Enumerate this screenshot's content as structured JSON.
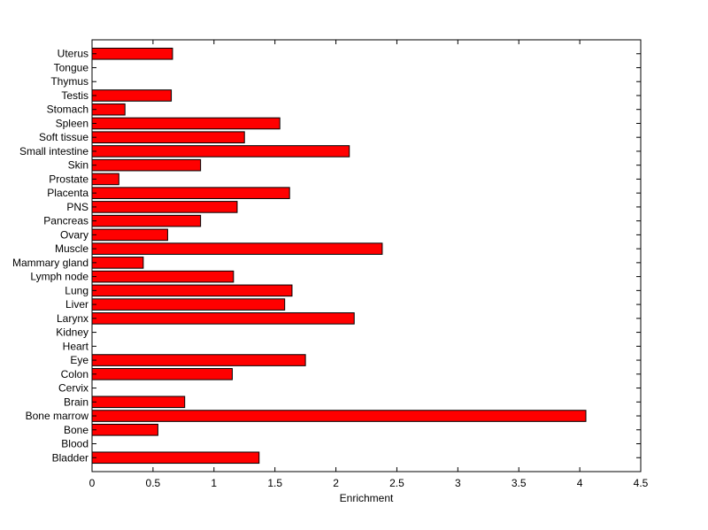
{
  "chart_data": {
    "type": "bar",
    "orientation": "horizontal",
    "categories": [
      "Bladder",
      "Blood",
      "Bone",
      "Bone marrow",
      "Brain",
      "Cervix",
      "Colon",
      "Eye",
      "Heart",
      "Kidney",
      "Larynx",
      "Liver",
      "Lung",
      "Lymph node",
      "Mammary gland",
      "Muscle",
      "Ovary",
      "Pancreas",
      "PNS",
      "Placenta",
      "Prostate",
      "Skin",
      "Small intestine",
      "Soft tissue",
      "Spleen",
      "Stomach",
      "Testis",
      "Thymus",
      "Tongue",
      "Uterus"
    ],
    "values": [
      1.37,
      0,
      0.54,
      4.05,
      0.76,
      0,
      1.15,
      1.75,
      0,
      0,
      2.15,
      1.58,
      1.64,
      1.16,
      0.42,
      2.38,
      0.62,
      0.89,
      1.19,
      1.62,
      0.22,
      0.89,
      2.11,
      1.25,
      1.54,
      0.27,
      0.65,
      0,
      0,
      0.66
    ],
    "title": "",
    "xlabel": "Enrichment",
    "ylabel": "",
    "xlim": [
      0,
      4.5
    ],
    "xticks": [
      0,
      0.5,
      1,
      1.5,
      2,
      2.5,
      3,
      3.5,
      4,
      4.5
    ],
    "xtick_labels": [
      "0",
      "0.5",
      "1",
      "1.5",
      "2",
      "2.5",
      "3",
      "3.5",
      "4",
      "4.5"
    ],
    "grid": false,
    "colors": {
      "bar_fill": "#ff0000",
      "bar_edge": "#000000",
      "axis": "#000000"
    }
  }
}
